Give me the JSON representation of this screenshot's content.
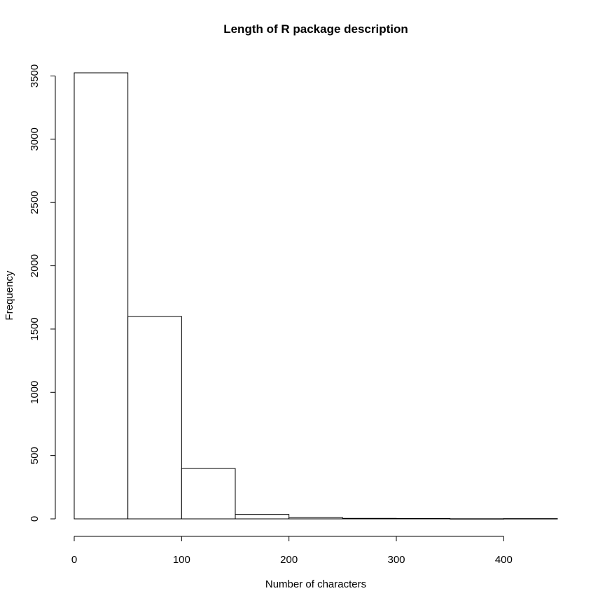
{
  "chart_data": {
    "type": "bar",
    "title": "Length of R package description",
    "xlabel": "Number of characters",
    "ylabel": "Frequency",
    "bins": [
      {
        "start": 0,
        "end": 50,
        "count": 3525
      },
      {
        "start": 50,
        "end": 100,
        "count": 1600
      },
      {
        "start": 100,
        "end": 150,
        "count": 398
      },
      {
        "start": 150,
        "end": 200,
        "count": 35
      },
      {
        "start": 200,
        "end": 250,
        "count": 10
      },
      {
        "start": 250,
        "end": 300,
        "count": 4
      },
      {
        "start": 300,
        "end": 350,
        "count": 3
      },
      {
        "start": 350,
        "end": 400,
        "count": 1
      },
      {
        "start": 400,
        "end": 450,
        "count": 2
      }
    ],
    "xlim": [
      0,
      450
    ],
    "ylim": [
      0,
      3525
    ],
    "x_ticks": [
      0,
      100,
      200,
      300,
      400
    ],
    "x_tick_labels": [
      "0",
      "100",
      "200",
      "300",
      "400"
    ],
    "y_ticks": [
      0,
      500,
      1000,
      1500,
      2000,
      2500,
      3000,
      3500
    ],
    "y_tick_labels": [
      "0",
      "500",
      "1000",
      "1500",
      "2000",
      "2500",
      "3000",
      "3500"
    ],
    "grid": false,
    "legend": "none"
  }
}
